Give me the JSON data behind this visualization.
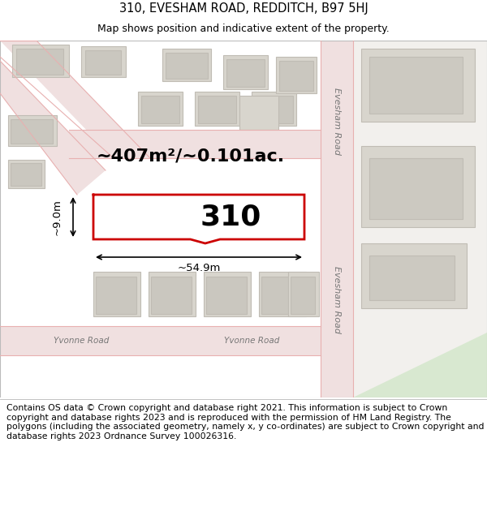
{
  "title_line1": "310, EVESHAM ROAD, REDDITCH, B97 5HJ",
  "title_line2": "Map shows position and indicative extent of the property.",
  "area_label": "~407m²/~0.101ac.",
  "plot_number": "310",
  "width_label": "~54.9m",
  "height_label": "~9.0m",
  "footer_text": "Contains OS data © Crown copyright and database right 2021. This information is subject to Crown copyright and database rights 2023 and is reproduced with the permission of HM Land Registry. The polygons (including the associated geometry, namely x, y co-ordinates) are subject to Crown copyright and database rights 2023 Ordnance Survey 100026316.",
  "map_bg": "#f2f0ed",
  "road_fill": "#f0e0e0",
  "road_edge": "#e8b0b0",
  "highlight_color": "#cc0000",
  "building_fill": "#d8d5cd",
  "building_edge": "#c0bcb4",
  "white": "#ffffff",
  "green_area": "#dde8d8",
  "title_fontsize": 10.5,
  "subtitle_fontsize": 9,
  "footer_fontsize": 7.8,
  "area_fontsize": 16,
  "plot_num_fontsize": 26,
  "dim_fontsize": 9.5,
  "road_label_fontsize": 8
}
